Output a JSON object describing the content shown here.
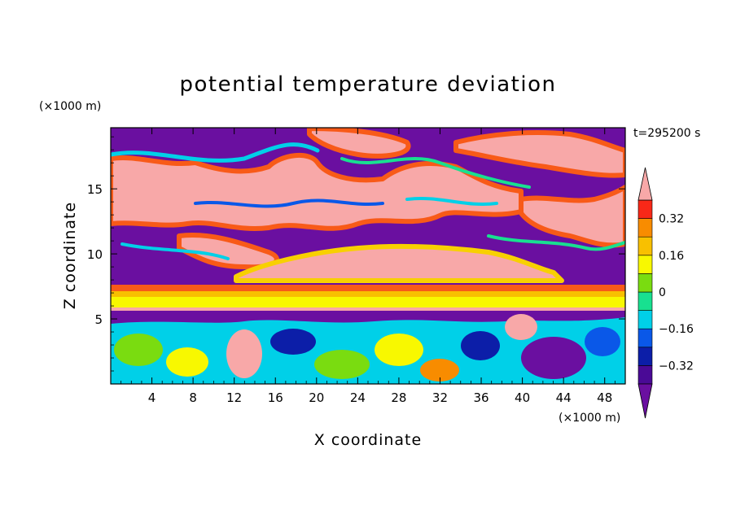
{
  "chart_data": {
    "type": "heatmap",
    "title": "potential temperature deviation",
    "xlabel": "X coordinate",
    "ylabel": "Z coordinate",
    "x_unit": "(×1000 m)",
    "y_unit": "(×1000 m)",
    "time_label": "t=295200 s",
    "xlim": [
      0,
      50
    ],
    "ylim": [
      0,
      19.7
    ],
    "x_ticks": [
      4,
      8,
      12,
      16,
      20,
      24,
      28,
      32,
      36,
      40,
      44,
      48
    ],
    "y_ticks": [
      5,
      10,
      15
    ],
    "colorbar": {
      "levels": [
        -0.4,
        -0.32,
        -0.24,
        -0.16,
        -0.08,
        0,
        0.08,
        0.16,
        0.24,
        0.32,
        0.4
      ],
      "tick_labels": [
        "0.32",
        "0.16",
        "0",
        "−0.16",
        "−0.32"
      ],
      "tick_values": [
        0.32,
        0.16,
        0,
        -0.16,
        -0.32
      ],
      "colors": {
        "below": "#6a0fa0",
        "bands": [
          "#4a0a96",
          "#0c1ea8",
          "#0a58e8",
          "#00d0e8",
          "#18e090",
          "#7adc10",
          "#f8f800",
          "#f8c000",
          "#f88c00",
          "#f82818"
        ],
        "above": "#f8a8a8"
      }
    },
    "regions_description_colors": {
      "pink": "#f8a8a8",
      "purple": "#6a0fa0"
    }
  }
}
